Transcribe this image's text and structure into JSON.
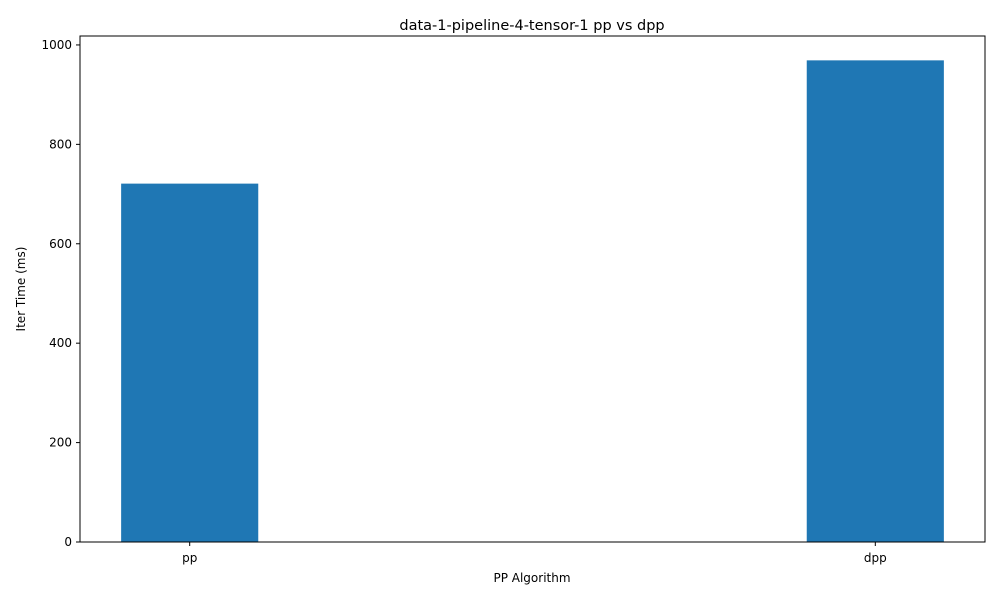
{
  "chart_data": {
    "type": "bar",
    "title": "data-1-pipeline-4-tensor-1 pp vs dpp",
    "xlabel": "PP Algorithm",
    "ylabel": "Iter Time (ms)",
    "categories": [
      "pp",
      "dpp"
    ],
    "values": [
      721,
      969
    ],
    "ylim": [
      0,
      1018
    ],
    "yticks": [
      0,
      200,
      400,
      600,
      800,
      1000
    ],
    "grid": false,
    "bar_color": "#1f77b4"
  }
}
